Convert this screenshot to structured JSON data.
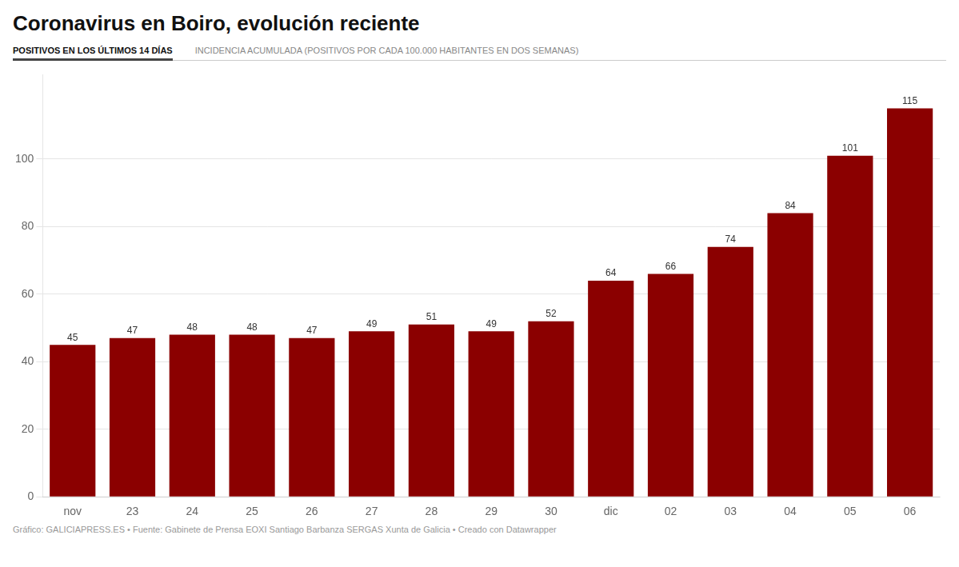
{
  "chart_data": {
    "type": "bar",
    "title": "Coronavirus en Boiro, evolución reciente",
    "annotations": [
      "POSITIVOS EN LOS ÚLTIMOS 14 DÍAS",
      "INCIDENCIA ACUMULADA (POSITIVOS POR CADA 100.000 HABITANTES EN DOS SEMANAS)",
      "Gráfico: GALICIAPRESS.ES • Fuente: Gabinete de Prensa EOXI Santiago Barbanza SERGAS Xunta de Galicia • Creado con Datawrapper"
    ],
    "categories": [
      "nov",
      "23",
      "24",
      "25",
      "26",
      "27",
      "28",
      "29",
      "30",
      "dic",
      "02",
      "03",
      "04",
      "05",
      "06"
    ],
    "values": [
      45,
      47,
      48,
      48,
      47,
      49,
      51,
      49,
      52,
      64,
      66,
      74,
      84,
      101,
      115
    ],
    "color": "#8B0000",
    "ylim": [
      0,
      125
    ],
    "yticks": [
      0,
      20,
      40,
      60,
      80,
      100
    ],
    "grid": true,
    "data_labels": true
  }
}
